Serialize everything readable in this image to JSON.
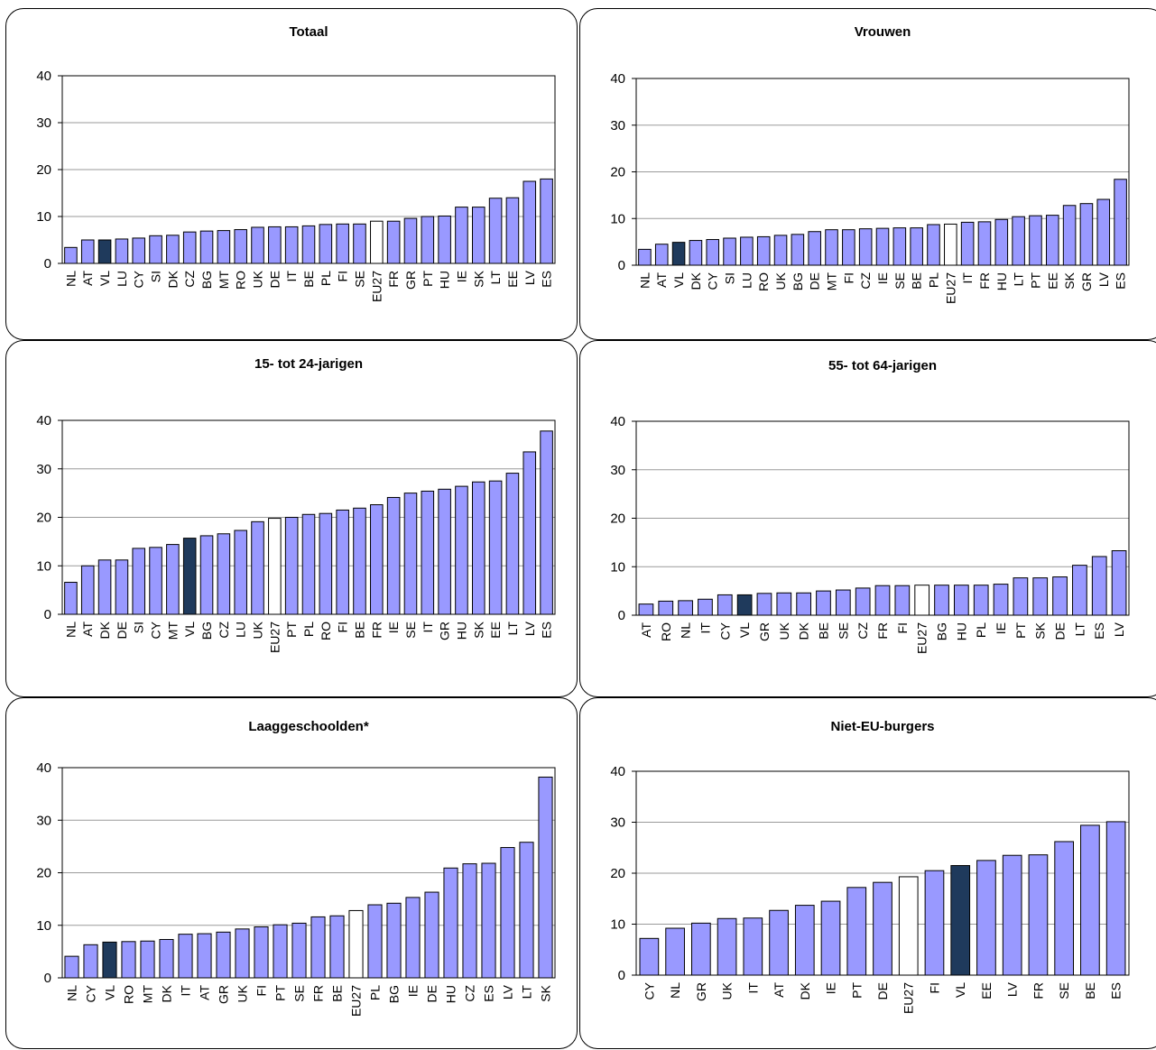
{
  "colors": {
    "default": "#9999ff",
    "highlight": "#1f3a5c",
    "reference": "#ffffff",
    "outline": "#000000",
    "grid": "#9a9a9a"
  },
  "chart_data": [
    {
      "type": "bar",
      "title": "Totaal",
      "ylim": [
        0,
        40
      ],
      "yticks": [
        0,
        10,
        20,
        30,
        40
      ],
      "grid": true,
      "highlight": "VL",
      "reference": "EU27",
      "categories": [
        "NL",
        "AT",
        "VL",
        "LU",
        "CY",
        "SI",
        "DK",
        "CZ",
        "BG",
        "MT",
        "RO",
        "UK",
        "DE",
        "IT",
        "BE",
        "PL",
        "FI",
        "SE",
        "EU27",
        "FR",
        "GR",
        "PT",
        "HU",
        "IE",
        "SK",
        "LT",
        "EE",
        "LV",
        "ES"
      ],
      "values": [
        3.4,
        5.0,
        5.0,
        5.2,
        5.4,
        5.9,
        6.0,
        6.7,
        6.9,
        7.0,
        7.2,
        7.7,
        7.8,
        7.8,
        8.0,
        8.3,
        8.4,
        8.4,
        9.0,
        9.0,
        9.6,
        10.0,
        10.1,
        12.0,
        12.0,
        13.9,
        14.0,
        17.5,
        18.0
      ]
    },
    {
      "type": "bar",
      "title": "Vrouwen",
      "ylim": [
        0,
        40
      ],
      "yticks": [
        0,
        10,
        20,
        30,
        40
      ],
      "grid": true,
      "highlight": "VL",
      "reference": "EU27",
      "categories": [
        "NL",
        "AT",
        "VL",
        "DK",
        "CY",
        "SI",
        "LU",
        "RO",
        "UK",
        "BG",
        "DE",
        "MT",
        "FI",
        "CZ",
        "IE",
        "SE",
        "BE",
        "PL",
        "EU27",
        "IT",
        "FR",
        "HU",
        "LT",
        "PT",
        "EE",
        "SK",
        "GR",
        "LV",
        "ES"
      ],
      "values": [
        3.4,
        4.5,
        4.9,
        5.3,
        5.5,
        5.8,
        6.0,
        6.1,
        6.4,
        6.6,
        7.2,
        7.6,
        7.6,
        7.8,
        7.9,
        8.0,
        8.0,
        8.7,
        8.8,
        9.2,
        9.3,
        9.8,
        10.4,
        10.6,
        10.7,
        12.8,
        13.2,
        14.1,
        18.4
      ]
    },
    {
      "type": "bar",
      "title": "15- tot 24-jarigen",
      "ylim": [
        0,
        40
      ],
      "yticks": [
        0,
        10,
        20,
        30,
        40
      ],
      "grid": true,
      "highlight": "VL",
      "reference": "EU27",
      "categories": [
        "NL",
        "AT",
        "DK",
        "DE",
        "SI",
        "CY",
        "MT",
        "VL",
        "BG",
        "CZ",
        "LU",
        "UK",
        "EU27",
        "PT",
        "PL",
        "RO",
        "FI",
        "BE",
        "FR",
        "IE",
        "SE",
        "IT",
        "GR",
        "HU",
        "SK",
        "EE",
        "LT",
        "LV",
        "ES"
      ],
      "values": [
        6.6,
        10.0,
        11.2,
        11.2,
        13.6,
        13.8,
        14.4,
        15.7,
        16.2,
        16.6,
        17.3,
        19.1,
        19.8,
        20.0,
        20.6,
        20.8,
        21.5,
        21.9,
        22.6,
        24.1,
        25.0,
        25.4,
        25.8,
        26.4,
        27.3,
        27.5,
        29.1,
        33.5,
        37.8
      ]
    },
    {
      "type": "bar",
      "title": "55- tot 64-jarigen",
      "ylim": [
        0,
        40
      ],
      "yticks": [
        0,
        10,
        20,
        30,
        40
      ],
      "grid": true,
      "highlight": "VL",
      "reference": "EU27",
      "categories": [
        "AT",
        "RO",
        "NL",
        "IT",
        "CY",
        "VL",
        "GR",
        "UK",
        "DK",
        "BE",
        "SE",
        "CZ",
        "FR",
        "FI",
        "EU27",
        "BG",
        "HU",
        "PL",
        "IE",
        "PT",
        "SK",
        "DE",
        "LT",
        "ES",
        "LV"
      ],
      "values": [
        2.3,
        2.9,
        3.0,
        3.3,
        4.2,
        4.2,
        4.5,
        4.6,
        4.6,
        5.0,
        5.2,
        5.6,
        6.1,
        6.1,
        6.2,
        6.2,
        6.2,
        6.2,
        6.4,
        7.7,
        7.7,
        7.9,
        10.3,
        12.1,
        13.3
      ]
    },
    {
      "type": "bar",
      "title": "Laaggeschoolden*",
      "ylim": [
        0,
        40
      ],
      "yticks": [
        0,
        10,
        20,
        30,
        40
      ],
      "grid": true,
      "highlight": "VL",
      "reference": "EU27",
      "categories": [
        "NL",
        "CY",
        "VL",
        "RO",
        "MT",
        "DK",
        "IT",
        "AT",
        "GR",
        "UK",
        "FI",
        "PT",
        "SE",
        "FR",
        "BE",
        "EU27",
        "PL",
        "BG",
        "IE",
        "DE",
        "HU",
        "CZ",
        "ES",
        "LV",
        "LT",
        "SK"
      ],
      "values": [
        4.1,
        6.3,
        6.8,
        6.9,
        7.0,
        7.3,
        8.3,
        8.4,
        8.7,
        9.3,
        9.7,
        10.1,
        10.4,
        11.6,
        11.8,
        12.8,
        13.9,
        14.2,
        15.3,
        16.3,
        20.9,
        21.7,
        21.8,
        24.8,
        25.8,
        38.2
      ]
    },
    {
      "type": "bar",
      "title": "Niet-EU-burgers",
      "ylim": [
        0,
        40
      ],
      "yticks": [
        0,
        10,
        20,
        30,
        40
      ],
      "grid": true,
      "highlight": "VL",
      "reference": "EU27",
      "categories": [
        "CY",
        "NL",
        "GR",
        "UK",
        "IT",
        "AT",
        "DK",
        "IE",
        "PT",
        "DE",
        "EU27",
        "FI",
        "VL",
        "EE",
        "LV",
        "FR",
        "SE",
        "BE",
        "ES"
      ],
      "values": [
        7.2,
        9.2,
        10.2,
        11.1,
        11.2,
        12.7,
        13.7,
        14.5,
        17.2,
        18.2,
        19.3,
        20.5,
        21.5,
        22.5,
        23.5,
        23.6,
        26.2,
        29.4,
        30.1
      ]
    }
  ]
}
